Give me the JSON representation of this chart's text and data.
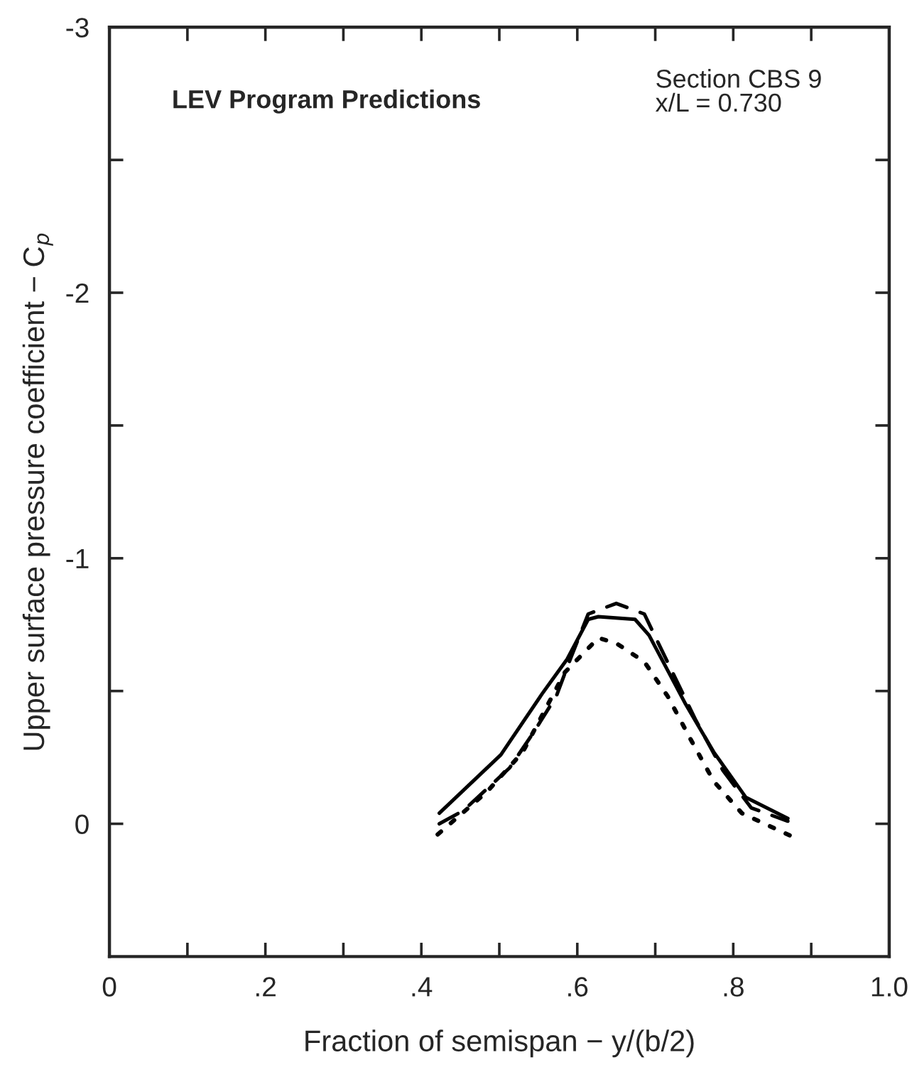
{
  "chart_data": {
    "type": "line",
    "title": "LEV Program Predictions",
    "xlabel": "Fraction of semispan − y/(b/2)",
    "ylabel": "Upper surface pressure coefficient − C$_{p}$",
    "annotations": [
      "Section CBS 9\nx/L = 0.730"
    ],
    "xlim": [
      0,
      1.0
    ],
    "ylim": [
      0.5,
      -3
    ],
    "xticks": [
      0,
      {
        "value": 0.1,
        "label": null
      },
      {
        "value": 0.2,
        "label": ".2"
      },
      {
        "value": 0.3,
        "label": null
      },
      {
        "value": 0.4,
        "label": ".4"
      },
      {
        "value": 0.5,
        "label": null
      },
      {
        "value": 0.6,
        "label": ".6"
      },
      {
        "value": 0.7,
        "label": null
      },
      {
        "value": 0.8,
        "label": ".8"
      },
      {
        "value": 0.9,
        "label": null
      },
      {
        "value": 1.0,
        "label": "1.0"
      }
    ],
    "yticks": [
      -3,
      {
        "value": -2.5,
        "label": null
      },
      -2,
      {
        "value": -1.5,
        "label": null
      },
      -1,
      {
        "value": -0.5,
        "label": null
      },
      0
    ],
    "grid": false,
    "legend": false,
    "series": [
      {
        "color": "#000000",
        "line_style": "solid",
        "x": [
          0.423,
          0.502,
          0.555,
          0.587,
          0.614,
          0.627,
          0.674,
          0.692,
          0.739,
          0.775,
          0.816,
          0.87
        ],
        "values": [
          -0.04,
          -0.26,
          -0.49,
          -0.62,
          -0.77,
          -0.78,
          -0.77,
          -0.71,
          -0.45,
          -0.27,
          -0.1,
          -0.02
        ]
      },
      {
        "color": "#000000",
        "line_style": "dashed",
        "x": [
          0.423,
          0.454,
          0.513,
          0.543,
          0.573,
          0.591,
          0.614,
          0.65,
          0.686,
          0.704,
          0.752,
          0.787,
          0.823,
          0.87
        ],
        "values": [
          0.0,
          -0.05,
          -0.21,
          -0.34,
          -0.48,
          -0.62,
          -0.79,
          -0.83,
          -0.79,
          -0.68,
          -0.39,
          -0.2,
          -0.06,
          -0.01
        ]
      },
      {
        "color": "#000000",
        "line_style": "dotted",
        "x": [
          0.421,
          0.484,
          0.53,
          0.584,
          0.627,
          0.65,
          0.686,
          0.716,
          0.745,
          0.775,
          0.811,
          0.877
        ],
        "values": [
          0.04,
          -0.12,
          -0.27,
          -0.57,
          -0.7,
          -0.68,
          -0.61,
          -0.48,
          -0.32,
          -0.16,
          -0.04,
          0.05
        ]
      }
    ]
  }
}
